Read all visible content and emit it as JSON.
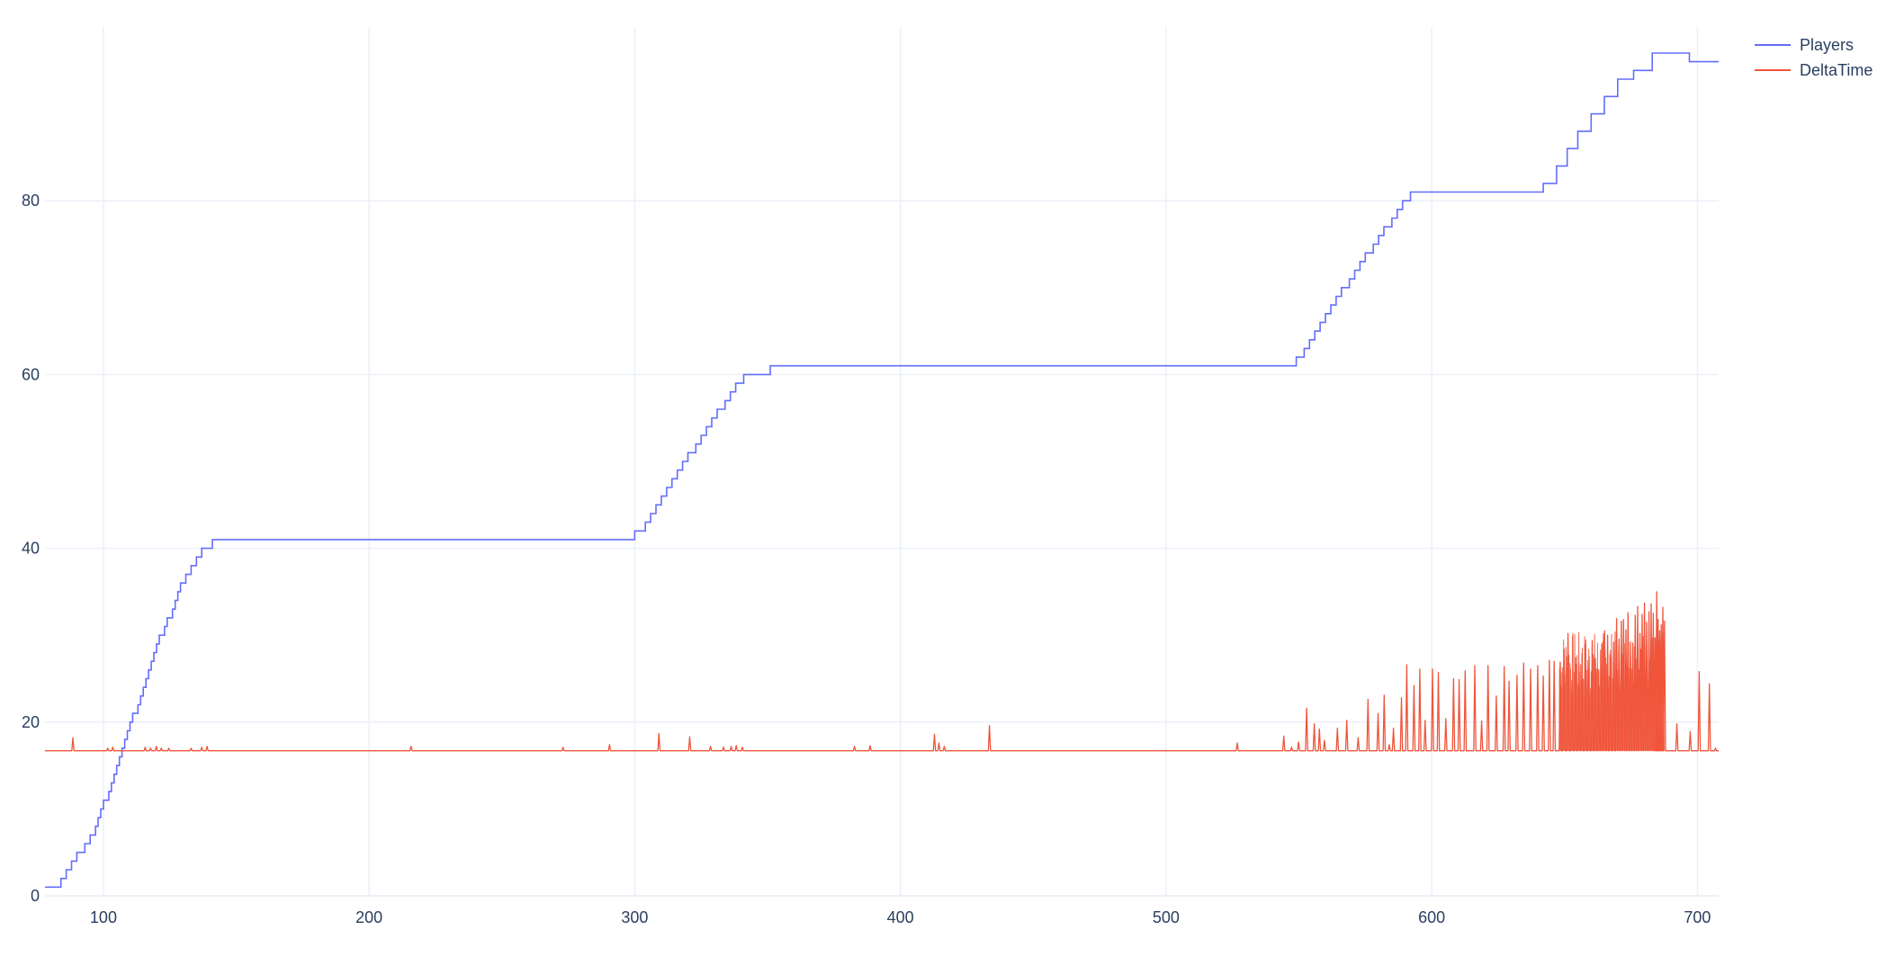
{
  "chart_data": {
    "type": "line",
    "title": "",
    "xlabel": "",
    "ylabel": "",
    "xlim": [
      78,
      708
    ],
    "ylim": [
      0,
      100
    ],
    "x_ticks": [
      100,
      200,
      300,
      400,
      500,
      600,
      700
    ],
    "y_ticks": [
      0,
      20,
      40,
      60,
      80
    ],
    "grid": true,
    "legend_position": "top-right",
    "colors": {
      "Players": "#636efa",
      "DeltaTime": "#ef553b",
      "grid": "#ebf0f8",
      "text": "#2a3f5f"
    },
    "series": [
      {
        "name": "Players",
        "line_shape": "step",
        "points": [
          [
            78,
            1
          ],
          [
            84,
            2
          ],
          [
            86,
            3
          ],
          [
            88,
            4
          ],
          [
            90,
            5
          ],
          [
            93,
            6
          ],
          [
            95,
            7
          ],
          [
            97,
            8
          ],
          [
            98,
            9
          ],
          [
            99,
            10
          ],
          [
            100,
            11
          ],
          [
            102,
            12
          ],
          [
            103,
            13
          ],
          [
            104,
            14
          ],
          [
            105,
            15
          ],
          [
            106,
            16
          ],
          [
            107,
            17
          ],
          [
            108,
            18
          ],
          [
            109,
            19
          ],
          [
            110,
            20
          ],
          [
            111,
            21
          ],
          [
            113,
            22
          ],
          [
            114,
            23
          ],
          [
            115,
            24
          ],
          [
            116,
            25
          ],
          [
            117,
            26
          ],
          [
            118,
            27
          ],
          [
            119,
            28
          ],
          [
            120,
            29
          ],
          [
            121,
            30
          ],
          [
            123,
            31
          ],
          [
            124,
            32
          ],
          [
            126,
            33
          ],
          [
            127,
            34
          ],
          [
            128,
            35
          ],
          [
            129,
            36
          ],
          [
            131,
            37
          ],
          [
            133,
            38
          ],
          [
            135,
            39
          ],
          [
            137,
            40
          ],
          [
            141,
            41
          ],
          [
            300,
            42
          ],
          [
            304,
            43
          ],
          [
            306,
            44
          ],
          [
            308,
            45
          ],
          [
            310,
            46
          ],
          [
            312,
            47
          ],
          [
            314,
            48
          ],
          [
            316,
            49
          ],
          [
            318,
            50
          ],
          [
            320,
            51
          ],
          [
            323,
            52
          ],
          [
            325,
            53
          ],
          [
            327,
            54
          ],
          [
            329,
            55
          ],
          [
            331,
            56
          ],
          [
            334,
            57
          ],
          [
            336,
            58
          ],
          [
            338,
            59
          ],
          [
            341,
            60
          ],
          [
            351,
            61
          ],
          [
            549,
            62
          ],
          [
            552,
            63
          ],
          [
            554,
            64
          ],
          [
            556,
            65
          ],
          [
            558,
            66
          ],
          [
            560,
            67
          ],
          [
            562,
            68
          ],
          [
            564,
            69
          ],
          [
            566,
            70
          ],
          [
            569,
            71
          ],
          [
            571,
            72
          ],
          [
            573,
            73
          ],
          [
            575,
            74
          ],
          [
            578,
            75
          ],
          [
            580,
            76
          ],
          [
            582,
            77
          ],
          [
            585,
            78
          ],
          [
            587,
            79
          ],
          [
            589,
            80
          ],
          [
            592,
            81
          ],
          [
            642,
            82
          ],
          [
            647,
            84
          ],
          [
            651,
            86
          ],
          [
            655,
            88
          ],
          [
            660,
            90
          ],
          [
            665,
            92
          ],
          [
            670,
            94
          ],
          [
            676,
            95
          ],
          [
            683,
            97
          ],
          [
            697,
            96
          ],
          [
            708,
            96
          ]
        ]
      },
      {
        "name": "DeltaTime",
        "line_shape": "linear",
        "baseline": 16.7,
        "spikes": [
          [
            88.5,
            18.2
          ],
          [
            101.6,
            17.0
          ],
          [
            103.5,
            17.1
          ],
          [
            115.7,
            17.1
          ],
          [
            117.7,
            17.0
          ],
          [
            119.9,
            17.2
          ],
          [
            121.8,
            17.0
          ],
          [
            124.6,
            17.0
          ],
          [
            133.0,
            17.0
          ],
          [
            137.0,
            17.1
          ],
          [
            139.0,
            17.2
          ],
          [
            215.8,
            17.2
          ],
          [
            273.0,
            17.1
          ],
          [
            290.5,
            17.4
          ],
          [
            309.1,
            18.7
          ],
          [
            320.7,
            18.3
          ],
          [
            328.5,
            17.2
          ],
          [
            333.4,
            17.1
          ],
          [
            336.3,
            17.2
          ],
          [
            338.2,
            17.3
          ],
          [
            340.5,
            17.1
          ],
          [
            382.7,
            17.2
          ],
          [
            388.6,
            17.3
          ],
          [
            412.8,
            18.6
          ],
          [
            414.5,
            17.6
          ],
          [
            416.5,
            17.2
          ],
          [
            433.5,
            19.6
          ],
          [
            526.8,
            17.6
          ],
          [
            544.3,
            18.4
          ],
          [
            547.2,
            17.1
          ],
          [
            549.9,
            17.7
          ],
          [
            552.9,
            21.6
          ],
          [
            555.8,
            19.8
          ],
          [
            557.7,
            19.2
          ],
          [
            559.6,
            17.9
          ],
          [
            564.5,
            19.3
          ],
          [
            568.0,
            20.2
          ],
          [
            572.3,
            18.2
          ],
          [
            576.0,
            22.6
          ],
          [
            579.8,
            21.0
          ],
          [
            582.1,
            23.1
          ],
          [
            584.0,
            17.4
          ],
          [
            585.6,
            19.3
          ],
          [
            588.6,
            22.8
          ],
          [
            590.6,
            26.6
          ],
          [
            593.3,
            24.2
          ],
          [
            595.5,
            26.1
          ],
          [
            597.5,
            20.2
          ],
          [
            600.3,
            26.1
          ],
          [
            602.5,
            25.7
          ],
          [
            605.3,
            20.4
          ],
          [
            608.2,
            25.0
          ],
          [
            610.3,
            24.9
          ],
          [
            612.6,
            25.9
          ],
          [
            616.2,
            26.5
          ],
          [
            618.8,
            20.1
          ],
          [
            621.2,
            26.5
          ],
          [
            624.3,
            23.0
          ],
          [
            627.3,
            26.4
          ],
          [
            629.1,
            24.7
          ],
          [
            632.1,
            25.4
          ],
          [
            634.6,
            26.8
          ],
          [
            637.2,
            26.1
          ],
          [
            639.9,
            26.5
          ],
          [
            642.0,
            25.3
          ],
          [
            644.3,
            27.1
          ],
          [
            646.1,
            27.0
          ],
          [
            648.4,
            26.9
          ],
          [
            649.8,
            28.4
          ],
          [
            651.3,
            30.2
          ],
          [
            652.8,
            24.8
          ],
          [
            654.1,
            27.4
          ],
          [
            655.4,
            26.8
          ],
          [
            656.6,
            27.9
          ],
          [
            657.9,
            29.0
          ],
          [
            659.1,
            26.2
          ],
          [
            660.4,
            29.4
          ],
          [
            661.6,
            27.3
          ],
          [
            662.8,
            26.0
          ],
          [
            664.0,
            29.0
          ],
          [
            665.1,
            30.5
          ],
          [
            666.2,
            30.0
          ],
          [
            667.3,
            27.4
          ],
          [
            668.5,
            29.2
          ],
          [
            669.6,
            31.9
          ],
          [
            670.5,
            29.5
          ],
          [
            671.4,
            31.6
          ],
          [
            672.2,
            31.8
          ],
          [
            673.1,
            30.6
          ],
          [
            673.9,
            32.6
          ],
          [
            674.8,
            29.2
          ],
          [
            675.7,
            29.1
          ],
          [
            676.6,
            32.3
          ],
          [
            677.5,
            33.3
          ],
          [
            678.4,
            30.2
          ],
          [
            679.2,
            32.4
          ],
          [
            680.1,
            33.7
          ],
          [
            680.9,
            31.5
          ],
          [
            681.8,
            32.7
          ],
          [
            682.6,
            33.6
          ],
          [
            683.4,
            32.5
          ],
          [
            684.1,
            29.7
          ],
          [
            684.7,
            35.0
          ],
          [
            685.2,
            31.8
          ],
          [
            685.8,
            30.5
          ],
          [
            686.4,
            31.2
          ],
          [
            687.0,
            33.2
          ],
          [
            687.6,
            31.6
          ],
          [
            692.3,
            19.8
          ],
          [
            697.3,
            18.9
          ],
          [
            700.7,
            25.8
          ],
          [
            704.5,
            24.4
          ],
          [
            706.8,
            17.0
          ]
        ]
      }
    ]
  }
}
